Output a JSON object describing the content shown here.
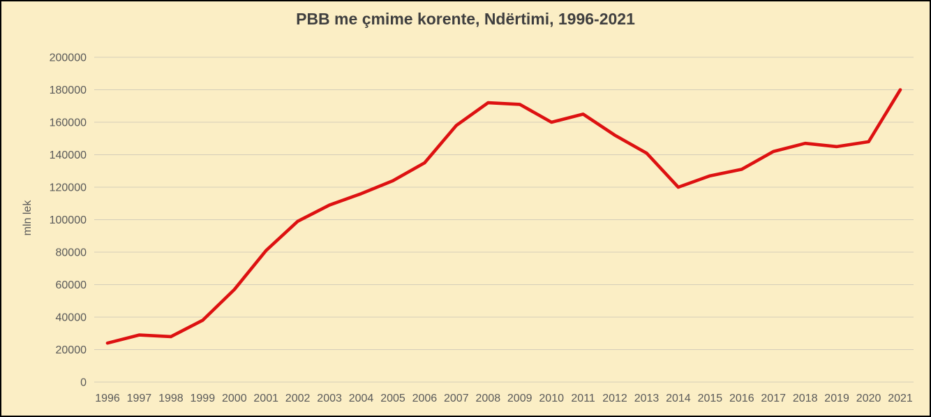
{
  "window": {
    "background_color": "#fbeec5",
    "frame_border_color": "#000000"
  },
  "colors": {
    "title_text": "#3f3f3f",
    "axis_text": "#595959",
    "gridline": "#d4cdb9",
    "line": "#dd1111"
  },
  "chart_data": {
    "type": "line",
    "title": "PBB me çmime korente, Ndërtimi, 1996-2021",
    "xlabel": "",
    "ylabel": "mln lek",
    "categories": [
      "1996",
      "1997",
      "1998",
      "1999",
      "2000",
      "2001",
      "2002",
      "2003",
      "2004",
      "2005",
      "2006",
      "2007",
      "2008",
      "2009",
      "2010",
      "2011",
      "2012",
      "2013",
      "2014",
      "2015",
      "2016",
      "2017",
      "2018",
      "2019",
      "2020",
      "2021"
    ],
    "series": [
      {
        "color": "#dd1111",
        "values": [
          24000,
          29000,
          28000,
          38000,
          57000,
          81000,
          99000,
          109000,
          116000,
          124000,
          135000,
          158000,
          172000,
          171000,
          160000,
          165000,
          152000,
          141000,
          120000,
          127000,
          131000,
          142000,
          147000,
          145000,
          148000,
          180000
        ]
      }
    ],
    "ylim": [
      0,
      200000
    ],
    "yticks": [
      0,
      20000,
      40000,
      60000,
      80000,
      100000,
      120000,
      140000,
      160000,
      180000,
      200000
    ],
    "grid": true,
    "legend": "none"
  }
}
